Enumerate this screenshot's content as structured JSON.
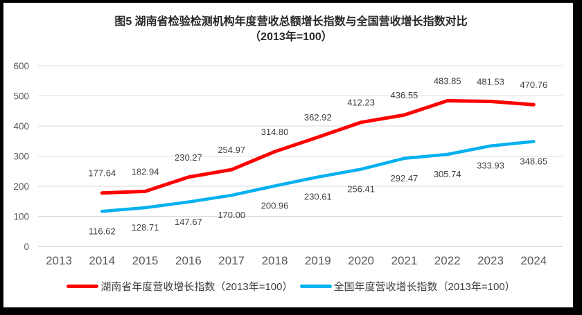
{
  "chart": {
    "title_line1": "图5 湖南省检验检测机构年度营收总额增长指数与全国营收增长指数对比",
    "title_line2": "（2013年=100）",
    "legend": [
      {
        "label": "湖南省年度营收增长指数（2013年=100）",
        "color": "#FF0000"
      },
      {
        "label": "全国年度营收增长指数（2013年=100）",
        "color": "#00B0F0"
      }
    ]
  },
  "chart_data": {
    "type": "line",
    "title": "图5 湖南省检验检测机构年度营收总额增长指数与全国营收增长指数对比（2013年=100）",
    "categories": [
      "2013",
      "2014",
      "2015",
      "2016",
      "2017",
      "2018",
      "2019",
      "2020",
      "2021",
      "2022",
      "2023",
      "2024"
    ],
    "series": [
      {
        "name": "湖南省年度营收增长指数（2013年=100）",
        "color": "#FF0000",
        "start_index": 1,
        "label_position": "above",
        "values": [
          177.64,
          182.94,
          230.27,
          254.97,
          314.8,
          362.92,
          412.23,
          436.55,
          483.85,
          481.53,
          470.76
        ]
      },
      {
        "name": "全国年度营收增长指数（2013年=100）",
        "color": "#00B0F0",
        "start_index": 1,
        "label_position": "below",
        "values": [
          116.62,
          128.71,
          147.67,
          170.0,
          200.96,
          230.61,
          256.41,
          292.47,
          305.74,
          333.93,
          348.65
        ]
      }
    ],
    "xlabel": "",
    "ylabel": "",
    "ylim": [
      0,
      600
    ],
    "yticks": [
      0,
      100,
      200,
      300,
      400,
      500,
      600
    ],
    "grid": true,
    "legend_position": "bottom",
    "decimals": 2
  }
}
